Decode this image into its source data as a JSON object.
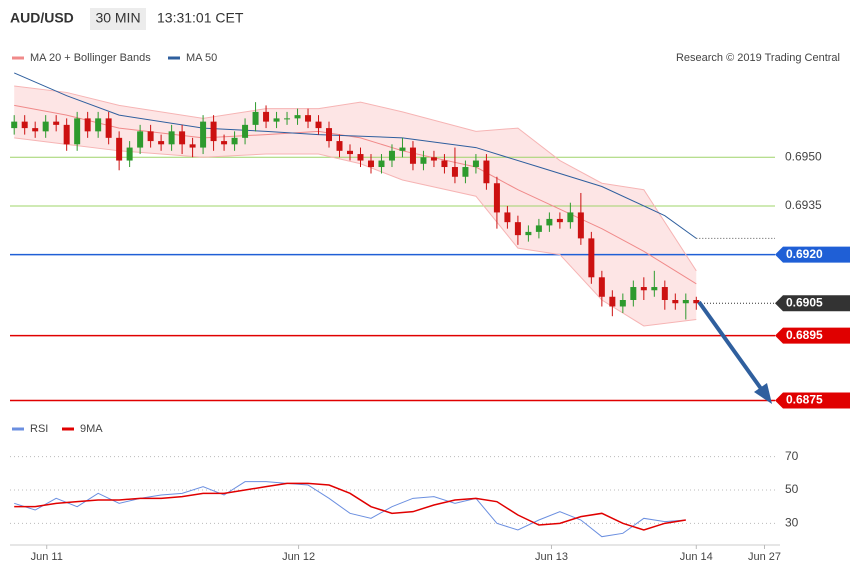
{
  "header": {
    "symbol": "AUD/USD",
    "interval": "30 MIN",
    "time": "13:31:01 CET",
    "copyright": "Research © 2019 Trading Central"
  },
  "chart_data": [
    {
      "type": "candlestick",
      "legend": [
        {
          "name": "MA 20 + Bollinger Bands",
          "color": "#f08a8a"
        },
        {
          "name": "MA 50",
          "color": "#2f5f9e"
        }
      ],
      "up_color": "#2e9a2e",
      "down_color": "#cc1111",
      "open": [
        0.6959,
        0.6961,
        0.6959,
        0.6958,
        0.6961,
        0.696,
        0.6954,
        0.6962,
        0.6958,
        0.6962,
        0.6956,
        0.6949,
        0.6953,
        0.6958,
        0.6955,
        0.6954,
        0.6958,
        0.6954,
        0.6953,
        0.6961,
        0.6955,
        0.6954,
        0.6956,
        0.696,
        0.6964,
        0.6961,
        0.6962,
        0.6962,
        0.6963,
        0.6961,
        0.6959,
        0.6955,
        0.6952,
        0.6951,
        0.6949,
        0.6947,
        0.6949,
        0.6952,
        0.6953,
        0.6948,
        0.695,
        0.6949,
        0.6947,
        0.6944,
        0.6947,
        0.6949,
        0.6942,
        0.6933,
        0.693,
        0.6926,
        0.6927,
        0.6929,
        0.6931,
        0.693,
        0.6933,
        0.6925,
        0.6913,
        0.6907,
        0.6904,
        0.6906,
        0.691,
        0.6909,
        0.691,
        0.6906,
        0.6905,
        0.6906
      ],
      "high": [
        0.6963,
        0.6963,
        0.6961,
        0.6963,
        0.6963,
        0.6962,
        0.6964,
        0.6964,
        0.6964,
        0.6964,
        0.6958,
        0.6955,
        0.696,
        0.696,
        0.6957,
        0.696,
        0.696,
        0.6956,
        0.6963,
        0.6963,
        0.6957,
        0.6958,
        0.6962,
        0.6967,
        0.6966,
        0.6964,
        0.6964,
        0.6965,
        0.6965,
        0.6963,
        0.6961,
        0.6957,
        0.6954,
        0.6953,
        0.6951,
        0.6951,
        0.6954,
        0.6956,
        0.6955,
        0.6952,
        0.6952,
        0.6951,
        0.6953,
        0.6949,
        0.6951,
        0.6951,
        0.6944,
        0.6935,
        0.6932,
        0.6929,
        0.6931,
        0.6933,
        0.6933,
        0.6936,
        0.6939,
        0.6927,
        0.6915,
        0.6909,
        0.6908,
        0.6912,
        0.6913,
        0.6915,
        0.6912,
        0.6908,
        0.6908,
        0.6907
      ],
      "low": [
        0.6957,
        0.6957,
        0.6956,
        0.6956,
        0.6958,
        0.6952,
        0.6952,
        0.6956,
        0.6956,
        0.6954,
        0.6946,
        0.6947,
        0.6951,
        0.6953,
        0.6952,
        0.6952,
        0.6951,
        0.695,
        0.6951,
        0.6952,
        0.6952,
        0.6952,
        0.6954,
        0.6958,
        0.6959,
        0.6959,
        0.696,
        0.696,
        0.6959,
        0.6957,
        0.6953,
        0.695,
        0.6949,
        0.6947,
        0.6945,
        0.6945,
        0.6947,
        0.695,
        0.6946,
        0.6946,
        0.6947,
        0.6945,
        0.6942,
        0.6942,
        0.6945,
        0.694,
        0.6928,
        0.6928,
        0.6923,
        0.6924,
        0.6925,
        0.6927,
        0.6928,
        0.6928,
        0.6923,
        0.6911,
        0.6904,
        0.6901,
        0.6902,
        0.6904,
        0.6906,
        0.6907,
        0.6903,
        0.6903,
        0.69,
        0.6903
      ],
      "close": [
        0.6961,
        0.6959,
        0.6958,
        0.6961,
        0.696,
        0.6954,
        0.6962,
        0.6958,
        0.6962,
        0.6956,
        0.6949,
        0.6953,
        0.6958,
        0.6955,
        0.6954,
        0.6958,
        0.6954,
        0.6953,
        0.6961,
        0.6955,
        0.6954,
        0.6956,
        0.696,
        0.6964,
        0.6961,
        0.6962,
        0.6962,
        0.6963,
        0.6961,
        0.6959,
        0.6955,
        0.6952,
        0.6951,
        0.6949,
        0.6947,
        0.6949,
        0.6952,
        0.6953,
        0.6948,
        0.695,
        0.6949,
        0.6947,
        0.6944,
        0.6947,
        0.6949,
        0.6942,
        0.6933,
        0.693,
        0.6926,
        0.6927,
        0.6929,
        0.6931,
        0.693,
        0.6933,
        0.6925,
        0.6913,
        0.6907,
        0.6904,
        0.6906,
        0.691,
        0.6909,
        0.691,
        0.6906,
        0.6905,
        0.6906,
        0.6905
      ],
      "ma50": {
        "x": [
          0,
          5,
          10,
          18,
          24,
          29,
          37,
          44,
          50,
          56,
          62,
          65
        ],
        "values": [
          0.6976,
          0.6969,
          0.6963,
          0.6959,
          0.6958,
          0.6957,
          0.6956,
          0.6953,
          0.6947,
          0.6941,
          0.6932,
          0.6925
        ]
      },
      "bands": {
        "x": [
          0,
          5,
          10,
          18,
          24,
          29,
          33,
          37,
          44,
          48,
          52,
          56,
          60,
          65
        ],
        "ma20": [
          0.6966,
          0.6963,
          0.6959,
          0.6956,
          0.6957,
          0.6958,
          0.6956,
          0.6952,
          0.6947,
          0.694,
          0.6934,
          0.6928,
          0.6921,
          0.6911
        ],
        "upper": [
          0.6972,
          0.697,
          0.6966,
          0.6962,
          0.6965,
          0.6965,
          0.6967,
          0.6964,
          0.6958,
          0.6959,
          0.6949,
          0.6942,
          0.694,
          0.6915
        ],
        "lower": [
          0.6956,
          0.6954,
          0.6952,
          0.695,
          0.6951,
          0.6951,
          0.6948,
          0.6943,
          0.6938,
          0.6922,
          0.692,
          0.6906,
          0.6898,
          0.69
        ]
      },
      "levels": [
        {
          "value": 0.695,
          "label": "0.6950",
          "color": "#9fd46a",
          "style": "plain"
        },
        {
          "value": 0.6935,
          "label": "0.6935",
          "color": "#9fd46a",
          "style": "plain"
        },
        {
          "value": 0.692,
          "label": "0.6920",
          "color": "#1f5fd6",
          "style": "tag"
        },
        {
          "value": 0.6905,
          "label": "0.6905",
          "color": "#333333",
          "style": "dotted"
        },
        {
          "value": 0.6895,
          "label": "0.6895",
          "color": "#e00000",
          "style": "tag"
        },
        {
          "value": 0.6875,
          "label": "0.6875",
          "color": "#e00000",
          "style": "tag"
        }
      ],
      "xlim": [
        -0.4,
        72.5
      ],
      "ylim": [
        0.6869,
        0.698
      ],
      "xticks": [
        {
          "value": 3.1,
          "label": "Jun 11"
        },
        {
          "value": 27.1,
          "label": "Jun 12"
        },
        {
          "value": 51.2,
          "label": "Jun 13"
        },
        {
          "value": 65,
          "label": "Jun 14"
        },
        {
          "value": 71.5,
          "label": "Jun 27"
        }
      ]
    },
    {
      "type": "line",
      "x": [
        0,
        2,
        4,
        6,
        8,
        10,
        12,
        14,
        16,
        18,
        20,
        22,
        24,
        26,
        28,
        30,
        32,
        34,
        36,
        38,
        40,
        42,
        44,
        46,
        48,
        50,
        52,
        54,
        56,
        58,
        60,
        62,
        64
      ],
      "series": [
        {
          "name": "RSI",
          "color": "#6b8fe0",
          "values": [
            42,
            38,
            45,
            40,
            48,
            42,
            45,
            47,
            48,
            52,
            47,
            55,
            55,
            54,
            53,
            45,
            36,
            33,
            40,
            45,
            46,
            42,
            45,
            30,
            26,
            32,
            37,
            32,
            22,
            24,
            33,
            31,
            32
          ]
        },
        {
          "name": "9MA",
          "color": "#e00000",
          "values": [
            40,
            40,
            42,
            43,
            44,
            44,
            45,
            45,
            46,
            48,
            48,
            50,
            52,
            54,
            54,
            53,
            48,
            40,
            36,
            37,
            41,
            44,
            45,
            43,
            35,
            29,
            30,
            34,
            36,
            30,
            26,
            30,
            32
          ]
        }
      ],
      "xlim": [
        -0.4,
        72.5
      ],
      "ylim": [
        17,
        80
      ],
      "yticks": [
        30,
        50,
        70
      ],
      "grid": true
    }
  ]
}
